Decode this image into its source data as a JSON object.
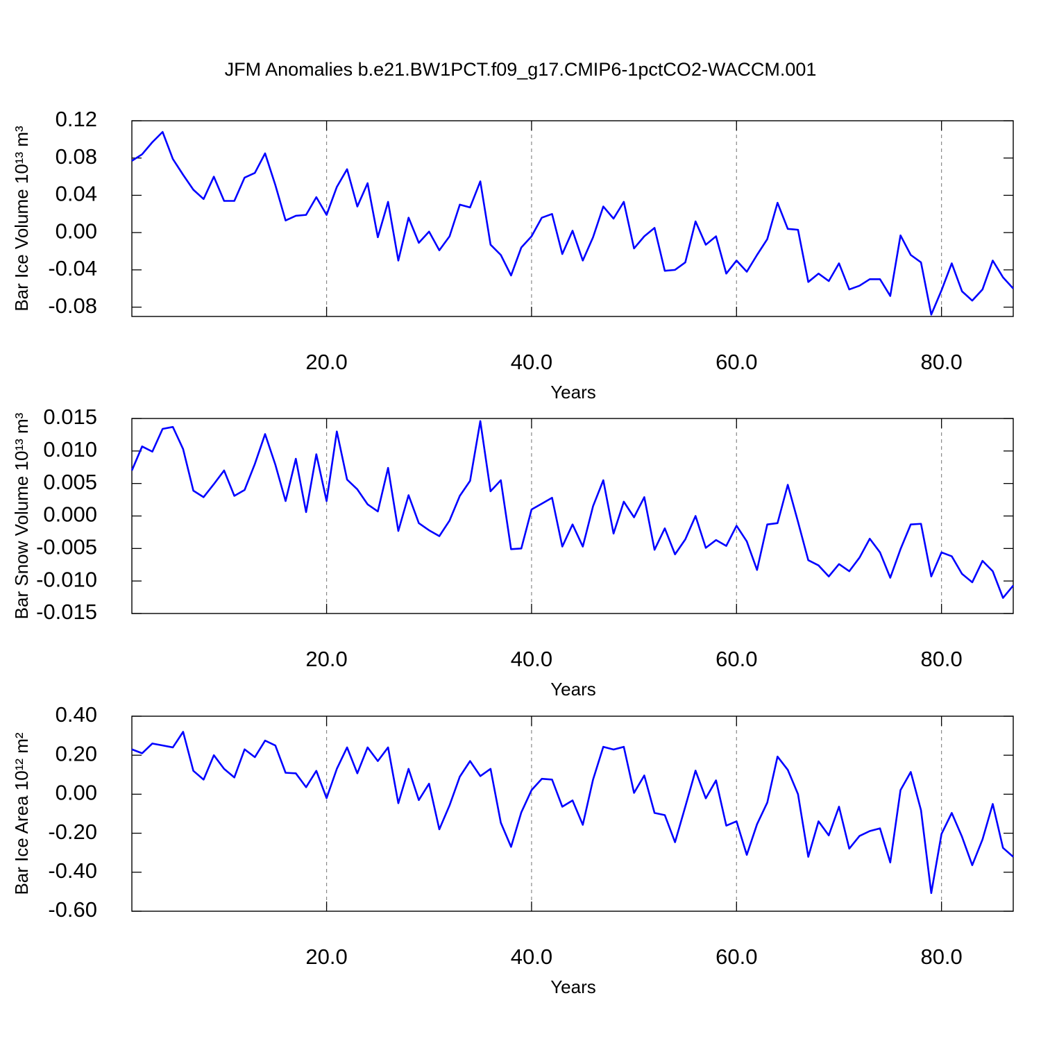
{
  "chart_data": [
    {
      "type": "line",
      "title": "JFM Anomalies b.e21.BW1PCT.f09_g17.CMIP6-1pctCO2-WACCM.001",
      "xlabel": "Years",
      "ylabel": "Bar Ice Volume 10¹³ m³",
      "color": "#0000ff",
      "xgrid": true,
      "xlim": [
        1,
        87
      ],
      "xticks": [
        {
          "value": 20,
          "label": "20.0"
        },
        {
          "value": 40,
          "label": "40.0"
        },
        {
          "value": 60,
          "label": "60.0"
        },
        {
          "value": 80,
          "label": "80.0"
        }
      ],
      "ylim": [
        -0.09,
        0.12
      ],
      "yticks": [
        0.12,
        0.08,
        0.04,
        {
          "value": 0,
          "label": "0.00"
        },
        -0.04,
        -0.08
      ],
      "x": [
        1,
        2,
        3,
        4,
        5,
        6,
        7,
        8,
        9,
        10,
        11,
        12,
        13,
        14,
        15,
        16,
        17,
        18,
        19,
        20,
        21,
        22,
        23,
        24,
        25,
        26,
        27,
        28,
        29,
        30,
        31,
        32,
        33,
        34,
        35,
        36,
        37,
        38,
        39,
        40,
        41,
        42,
        43,
        44,
        45,
        46,
        47,
        48,
        49,
        50,
        51,
        52,
        53,
        54,
        55,
        56,
        57,
        58,
        59,
        60,
        61,
        62,
        63,
        64,
        65,
        66,
        67,
        68,
        69,
        70,
        71,
        72,
        73,
        74,
        75,
        76,
        77,
        78,
        79,
        80,
        81,
        82,
        83,
        84,
        85,
        86,
        87
      ],
      "values": [
        0.077,
        0.084,
        0.097,
        0.108,
        0.079,
        0.062,
        0.046,
        0.036,
        0.06,
        0.034,
        0.034,
        0.059,
        0.064,
        0.085,
        0.051,
        0.013,
        0.018,
        0.019,
        0.038,
        0.019,
        0.049,
        0.068,
        0.028,
        0.053,
        -0.005,
        0.033,
        -0.03,
        0.016,
        -0.011,
        0.001,
        -0.019,
        -0.004,
        0.03,
        0.027,
        0.055,
        -0.013,
        -0.024,
        -0.046,
        -0.016,
        -0.004,
        0.016,
        0.02,
        -0.023,
        0.002,
        -0.03,
        -0.005,
        0.028,
        0.015,
        0.033,
        -0.017,
        -0.004,
        0.005,
        -0.041,
        -0.04,
        -0.032,
        0.012,
        -0.013,
        -0.004,
        -0.044,
        -0.03,
        -0.042,
        -0.024,
        -0.007,
        0.032,
        0.004,
        0.003,
        -0.053,
        -0.044,
        -0.052,
        -0.033,
        -0.061,
        -0.057,
        -0.05,
        -0.05,
        -0.068,
        -0.003,
        -0.024,
        -0.032,
        -0.088,
        -0.062,
        -0.033,
        -0.063,
        -0.073,
        -0.061,
        -0.03,
        -0.048,
        -0.06
      ]
    },
    {
      "type": "line",
      "xlabel": "Years",
      "ylabel": "Bar Snow Volume 10¹³ m³",
      "color": "#0000ff",
      "xgrid": true,
      "xlim": [
        1,
        87
      ],
      "xticks": [
        {
          "value": 20,
          "label": "20.0"
        },
        {
          "value": 40,
          "label": "40.0"
        },
        {
          "value": 60,
          "label": "60.0"
        },
        {
          "value": 80,
          "label": "80.0"
        }
      ],
      "ylim": [
        -0.015,
        0.015
      ],
      "yticks": [
        0.015,
        {
          "value": 0.01,
          "label": "0.010"
        },
        0.005,
        {
          "value": 0,
          "label": "0.000"
        },
        -0.005,
        {
          "value": -0.01,
          "label": "-0.010"
        },
        -0.015
      ],
      "x": [
        1,
        2,
        3,
        4,
        5,
        6,
        7,
        8,
        9,
        10,
        11,
        12,
        13,
        14,
        15,
        16,
        17,
        18,
        19,
        20,
        21,
        22,
        23,
        24,
        25,
        26,
        27,
        28,
        29,
        30,
        31,
        32,
        33,
        34,
        35,
        36,
        37,
        38,
        39,
        40,
        41,
        42,
        43,
        44,
        45,
        46,
        47,
        48,
        49,
        50,
        51,
        52,
        53,
        54,
        55,
        56,
        57,
        58,
        59,
        60,
        61,
        62,
        63,
        64,
        65,
        66,
        67,
        68,
        69,
        70,
        71,
        72,
        73,
        74,
        75,
        76,
        77,
        78,
        79,
        80,
        81,
        82,
        83,
        84,
        85,
        86,
        87
      ],
      "values": [
        0.007,
        0.0107,
        0.0099,
        0.0134,
        0.0137,
        0.0103,
        0.0039,
        0.0029,
        0.0049,
        0.007,
        0.0031,
        0.004,
        0.008,
        0.0126,
        0.0079,
        0.0023,
        0.0088,
        0.0006,
        0.0095,
        0.0023,
        0.013,
        0.0056,
        0.0041,
        0.0018,
        0.0007,
        0.0074,
        -0.0023,
        0.0032,
        -0.0011,
        -0.0022,
        -0.0031,
        -0.0007,
        0.0031,
        0.0054,
        0.0146,
        0.0038,
        0.0055,
        -0.0051,
        -0.005,
        0.001,
        0.0019,
        0.0028,
        -0.0047,
        -0.0013,
        -0.0047,
        0.0015,
        0.0055,
        -0.0027,
        0.0022,
        -0.0002,
        0.0029,
        -0.0052,
        -0.0019,
        -0.0059,
        -0.0036,
        0.0,
        -0.0049,
        -0.0037,
        -0.0046,
        -0.0015,
        -0.0039,
        -0.0083,
        -0.0013,
        -0.0011,
        0.0048,
        -0.0009,
        -0.0068,
        -0.0076,
        -0.0093,
        -0.0074,
        -0.0085,
        -0.0064,
        -0.0035,
        -0.0056,
        -0.0095,
        -0.0051,
        -0.0013,
        -0.0012,
        -0.0093,
        -0.0056,
        -0.0062,
        -0.0089,
        -0.0102,
        -0.0069,
        -0.0085,
        -0.0126,
        -0.0107
      ]
    },
    {
      "type": "line",
      "xlabel": "Years",
      "ylabel": "Bar Ice Area 10¹² m²",
      "color": "#0000ff",
      "xgrid": true,
      "xlim": [
        1,
        87
      ],
      "xticks": [
        {
          "value": 20,
          "label": "20.0"
        },
        {
          "value": 40,
          "label": "40.0"
        },
        {
          "value": 60,
          "label": "60.0"
        },
        {
          "value": 80,
          "label": "80.0"
        }
      ],
      "ylim": [
        -0.6,
        0.4
      ],
      "yticks": [
        {
          "value": 0.4,
          "label": "0.40"
        },
        {
          "value": 0.2,
          "label": "0.20"
        },
        {
          "value": 0,
          "label": "0.00"
        },
        {
          "value": -0.2,
          "label": "-0.20"
        },
        {
          "value": -0.4,
          "label": "-0.40"
        },
        {
          "value": -0.6,
          "label": "-0.60"
        }
      ],
      "x": [
        1,
        2,
        3,
        4,
        5,
        6,
        7,
        8,
        9,
        10,
        11,
        12,
        13,
        14,
        15,
        16,
        17,
        18,
        19,
        20,
        21,
        22,
        23,
        24,
        25,
        26,
        27,
        28,
        29,
        30,
        31,
        32,
        33,
        34,
        35,
        36,
        37,
        38,
        39,
        40,
        41,
        42,
        43,
        44,
        45,
        46,
        47,
        48,
        49,
        50,
        51,
        52,
        53,
        54,
        55,
        56,
        57,
        58,
        59,
        60,
        61,
        62,
        63,
        64,
        65,
        66,
        67,
        68,
        69,
        70,
        71,
        72,
        73,
        74,
        75,
        76,
        77,
        78,
        79,
        80,
        81,
        82,
        83,
        84,
        85,
        86,
        87
      ],
      "values": [
        0.23,
        0.21,
        0.26,
        0.25,
        0.24,
        0.32,
        0.12,
        0.075,
        0.2,
        0.13,
        0.086,
        0.23,
        0.19,
        0.275,
        0.25,
        0.11,
        0.107,
        0.036,
        0.12,
        -0.02,
        0.13,
        0.24,
        0.107,
        0.24,
        0.17,
        0.24,
        -0.046,
        0.13,
        -0.03,
        0.054,
        -0.18,
        -0.057,
        0.09,
        0.17,
        0.093,
        0.13,
        -0.146,
        -0.27,
        -0.093,
        0.021,
        0.079,
        0.075,
        -0.064,
        -0.032,
        -0.157,
        0.075,
        0.243,
        0.229,
        0.243,
        0.007,
        0.096,
        -0.096,
        -0.107,
        -0.246,
        -0.064,
        0.121,
        -0.021,
        0.071,
        -0.161,
        -0.139,
        -0.311,
        -0.154,
        -0.043,
        0.193,
        0.125,
        0.0,
        -0.321,
        -0.139,
        -0.211,
        -0.064,
        -0.279,
        -0.214,
        -0.189,
        -0.175,
        -0.35,
        0.021,
        0.114,
        -0.082,
        -0.507,
        -0.204,
        -0.096,
        -0.218,
        -0.364,
        -0.232,
        -0.05,
        -0.275,
        -0.321
      ]
    }
  ]
}
